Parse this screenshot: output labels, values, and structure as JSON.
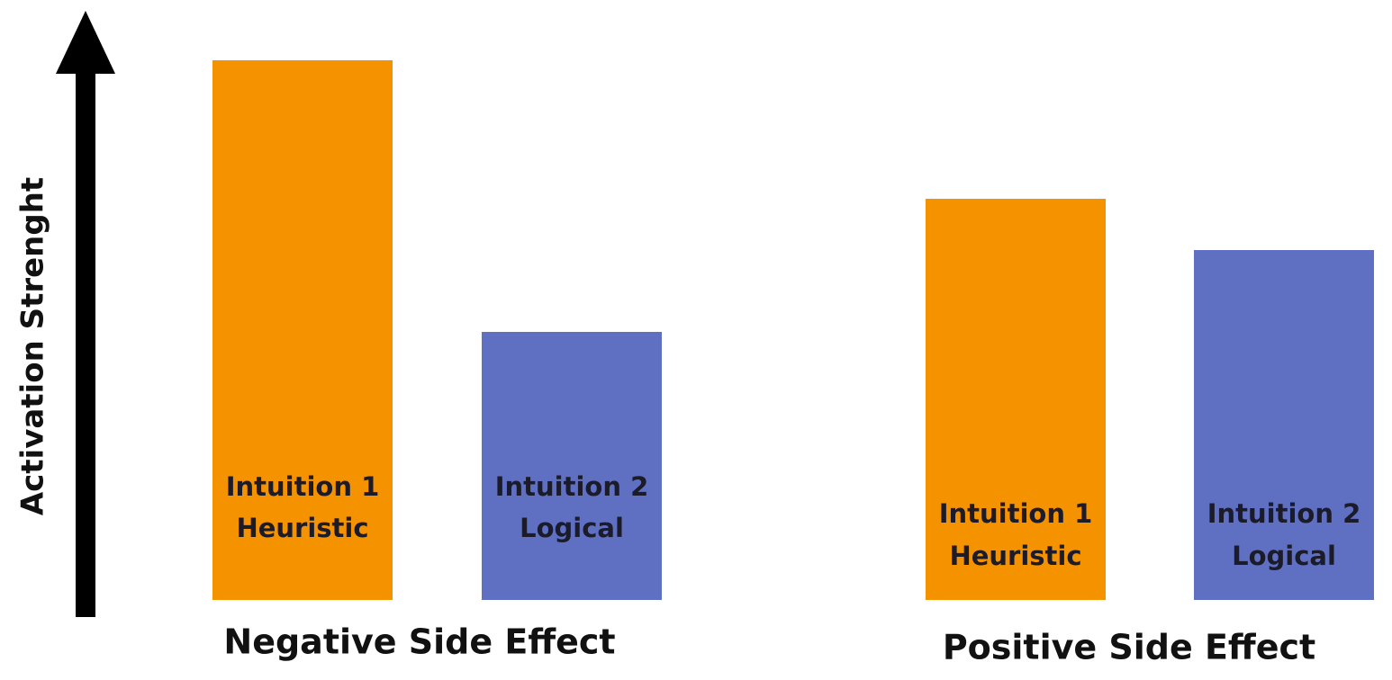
{
  "axis_label": "Activation Strenght",
  "groups": [
    {
      "title": "Negative Side Effect",
      "bars": [
        {
          "line1": "Intuition 1",
          "line2": "Heuristic"
        },
        {
          "line1": "Intuition 2",
          "line2": "Logical"
        }
      ]
    },
    {
      "title": "Positive Side Effect",
      "bars": [
        {
          "line1": "Intuition 1",
          "line2": "Heuristic"
        },
        {
          "line1": "Intuition 2",
          "line2": "Logical"
        }
      ]
    }
  ]
}
